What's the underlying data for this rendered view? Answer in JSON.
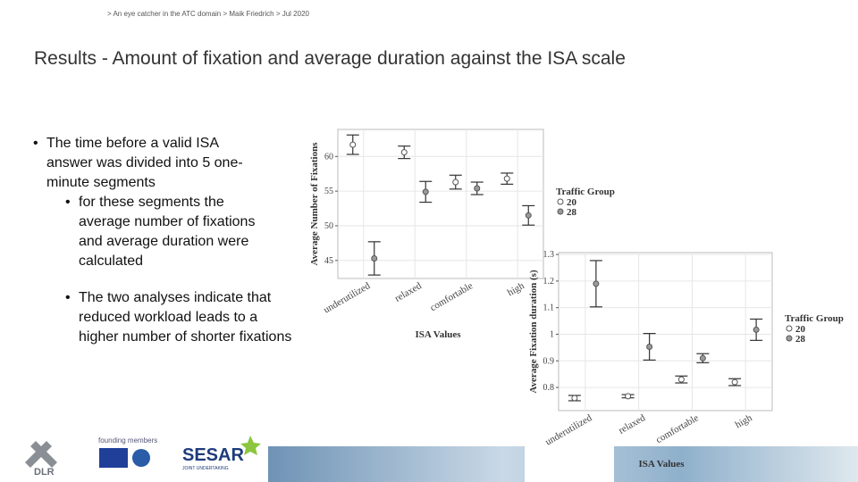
{
  "header": "> An eye catcher in the ATC domain > Maik Friedrich > Jul 2020",
  "title": "Results - Amount of fixation and average duration against the ISA scale",
  "bullets": [
    "The time before a valid ISA answer was divided into 5 one-minute segments",
    "for these segments the average number of fixations and average duration were calculated",
    "The two analyses indicate that reduced workload leads to a higher number of shorter fixations"
  ],
  "logos": {
    "dlr": "DLR",
    "founding": "founding members",
    "sesar": "SESAR",
    "joint": "JOINT UNDERTAKING"
  },
  "chart_data": [
    {
      "type": "errorbar",
      "x_label": "ISA Values",
      "y_label": "Average Number of Fixations",
      "categories": [
        "underutilized",
        "relaxed",
        "comfortable",
        "high"
      ],
      "legend_title": "Traffic Group",
      "series": [
        {
          "name": "20",
          "color": "#ffffff",
          "values": [
            61.7,
            60.6,
            56.3,
            56.8
          ],
          "errors": [
            1.4,
            0.9,
            1.0,
            0.8
          ]
        },
        {
          "name": "28",
          "color": "#9a9a9a",
          "values": [
            45.3,
            54.9,
            55.4,
            51.5
          ],
          "errors": [
            2.4,
            1.5,
            0.9,
            1.4
          ]
        }
      ],
      "ylim": [
        42.4,
        63.9
      ],
      "yticks": [
        45,
        50,
        55,
        60
      ],
      "grid": true
    },
    {
      "type": "errorbar",
      "x_label": "ISA Values",
      "y_label": "Average Fixation duration (s)",
      "categories": [
        "underutilized",
        "relaxed",
        "comfortable",
        "high"
      ],
      "legend_title": "Traffic Group",
      "series": [
        {
          "name": "20",
          "color": "#ffffff",
          "values": [
            0.76,
            0.767,
            0.83,
            0.82
          ],
          "errors": [
            0.01,
            0.006,
            0.013,
            0.013
          ]
        },
        {
          "name": "28",
          "color": "#9a9a9a",
          "values": [
            1.19,
            0.953,
            0.91,
            1.017
          ],
          "errors": [
            0.087,
            0.05,
            0.017,
            0.04
          ]
        }
      ],
      "ylim": [
        0.713,
        1.307
      ],
      "yticks": [
        0.8,
        0.9,
        1.0,
        {
          "value": 1.1,
          "label": "1.1"
        },
        1.2,
        1.3
      ],
      "grid": true
    }
  ]
}
